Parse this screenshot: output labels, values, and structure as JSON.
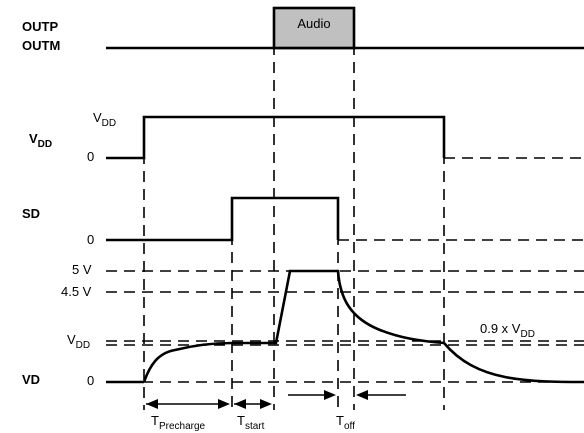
{
  "signals": {
    "outp": "OUTP",
    "outm": "OUTM",
    "vdd_main": "V",
    "vdd_sub": "DD",
    "sd": "SD",
    "vd": "VD"
  },
  "axis_levels": {
    "vdd_high_main": "V",
    "vdd_high_sub": "DD",
    "vdd_zero": "0",
    "sd_zero": "0",
    "five_v": "5 V",
    "four_five_v": "4.5 V",
    "vd_vdd_main": "V",
    "vd_vdd_sub": "DD",
    "vd_zero": "0",
    "ninety_pct_main": "0.9 x V",
    "ninety_pct_sub": "DD"
  },
  "audio_block": {
    "label": "Audio",
    "fill_color": "#c0c0c0"
  },
  "timing": {
    "precharge_main": "T",
    "precharge_sub": "Precharge",
    "start_main": "T",
    "start_sub": "start",
    "off_main": "T",
    "off_sub": "off"
  }
}
